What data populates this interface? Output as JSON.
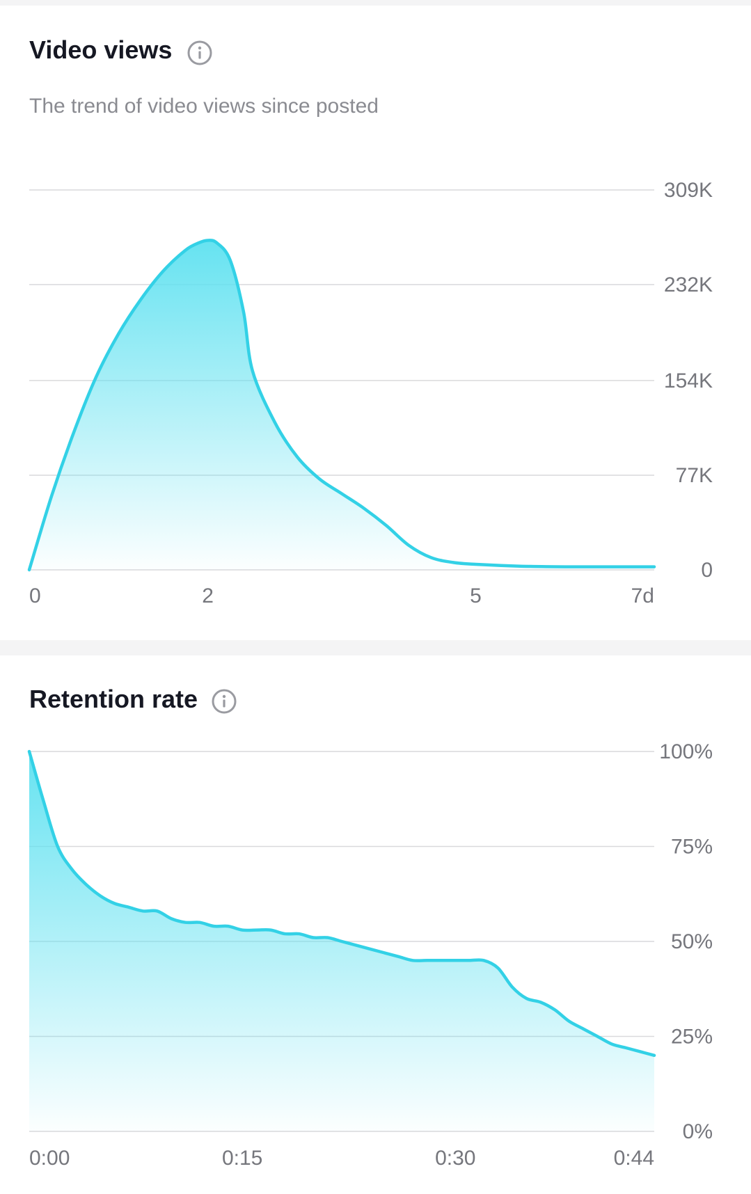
{
  "colors": {
    "line": "#33d1e6",
    "fill_top": "#5ee1f0",
    "grid": "#d9d9dc",
    "title": "#161823",
    "subtitle": "#8a8b91",
    "tick": "#75767c",
    "divider": "#f4f4f5"
  },
  "views_card": {
    "title": "Video views",
    "subtitle": "The trend of video views since posted",
    "info_icon": "info-icon"
  },
  "retention_card": {
    "title": "Retention rate",
    "info_icon": "info-icon"
  },
  "chart_data": [
    {
      "type": "area",
      "title": "Video views",
      "subtitle": "The trend of video views since posted",
      "xlabel": "",
      "ylabel": "",
      "xlim": [
        0,
        7
      ],
      "ylim": [
        0,
        309000
      ],
      "x_ticks": [
        0,
        2,
        5,
        7
      ],
      "x_tick_labels": [
        "0",
        "2",
        "5",
        "7d"
      ],
      "y_ticks": [
        0,
        77000,
        154000,
        232000,
        309000
      ],
      "y_tick_labels": [
        "0",
        "77K",
        "154K",
        "232K",
        "309K"
      ],
      "y_axis_position": "right",
      "grid": true,
      "series": [
        {
          "x": [
            0,
            0.25,
            0.5,
            0.75,
            1.0,
            1.25,
            1.5,
            1.75,
            1.9,
            2.0,
            2.1,
            2.25,
            2.4,
            2.5,
            2.75,
            3.0,
            3.25,
            3.5,
            3.75,
            4.0,
            4.25,
            4.5,
            4.75,
            5.0,
            5.5,
            6.0,
            6.5,
            7.0
          ],
          "values": [
            0,
            60000,
            112000,
            157000,
            192000,
            220000,
            243000,
            260000,
            266000,
            268000,
            266000,
            252000,
            210000,
            162000,
            120000,
            92000,
            74000,
            62000,
            50000,
            36000,
            20000,
            10000,
            6000,
            4500,
            3000,
            2500,
            2500,
            2500
          ]
        }
      ]
    },
    {
      "type": "area",
      "title": "Retention rate",
      "xlabel": "",
      "ylabel": "",
      "xlim": [
        0,
        44
      ],
      "ylim": [
        0,
        100
      ],
      "x_ticks": [
        0,
        15,
        30,
        44
      ],
      "x_tick_labels": [
        "0:00",
        "0:15",
        "0:30",
        "0:44"
      ],
      "y_ticks": [
        0,
        25,
        50,
        75,
        100
      ],
      "y_tick_labels": [
        "0%",
        "25%",
        "50%",
        "75%",
        "100%"
      ],
      "y_axis_position": "right",
      "grid": true,
      "series": [
        {
          "x": [
            0,
            1,
            2,
            3,
            4,
            5,
            6,
            7,
            8,
            9,
            10,
            11,
            12,
            13,
            14,
            15,
            16,
            17,
            18,
            19,
            20,
            21,
            22,
            23,
            24,
            25,
            26,
            27,
            28,
            29,
            30,
            31,
            32,
            33,
            34,
            35,
            36,
            37,
            38,
            39,
            40,
            41,
            42,
            43,
            44
          ],
          "values": [
            100,
            87,
            75,
            69,
            65,
            62,
            60,
            59,
            58,
            58,
            56,
            55,
            55,
            54,
            54,
            53,
            53,
            53,
            52,
            52,
            51,
            51,
            50,
            49,
            48,
            47,
            46,
            45,
            45,
            45,
            45,
            45,
            45,
            43,
            38,
            35,
            34,
            32,
            29,
            27,
            25,
            23,
            22,
            21,
            20
          ]
        }
      ]
    }
  ]
}
